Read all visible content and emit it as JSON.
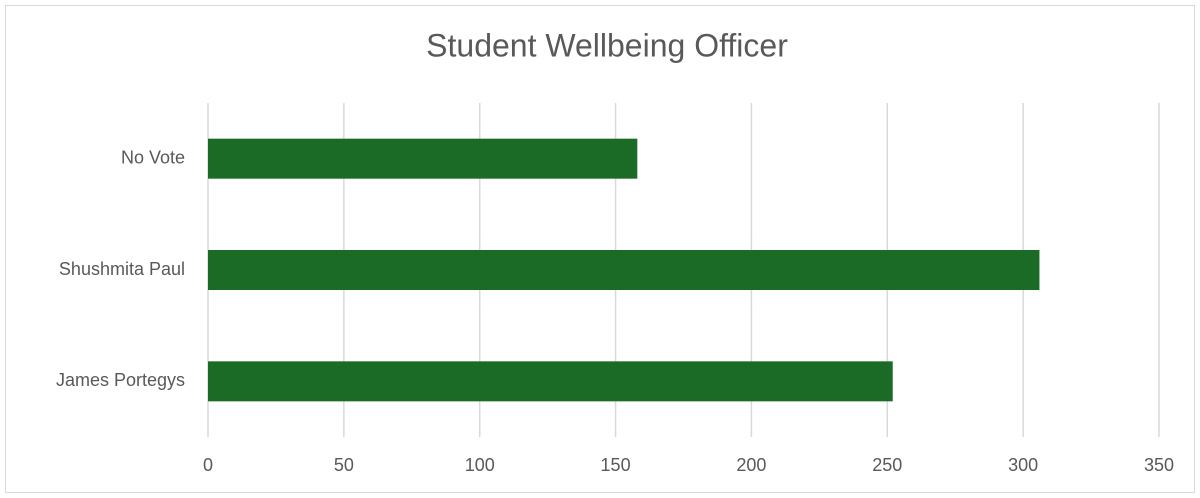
{
  "chart_data": {
    "type": "bar",
    "orientation": "horizontal",
    "title": "Student Wellbeing Officer",
    "categories": [
      "No Vote",
      "Shushmita Paul",
      "James Portegys"
    ],
    "values": [
      158,
      306,
      252
    ],
    "color": "#1b6b27",
    "xlim": [
      0,
      350
    ],
    "xticks": [
      0,
      50,
      100,
      150,
      200,
      250,
      300,
      350
    ],
    "grid": true
  }
}
